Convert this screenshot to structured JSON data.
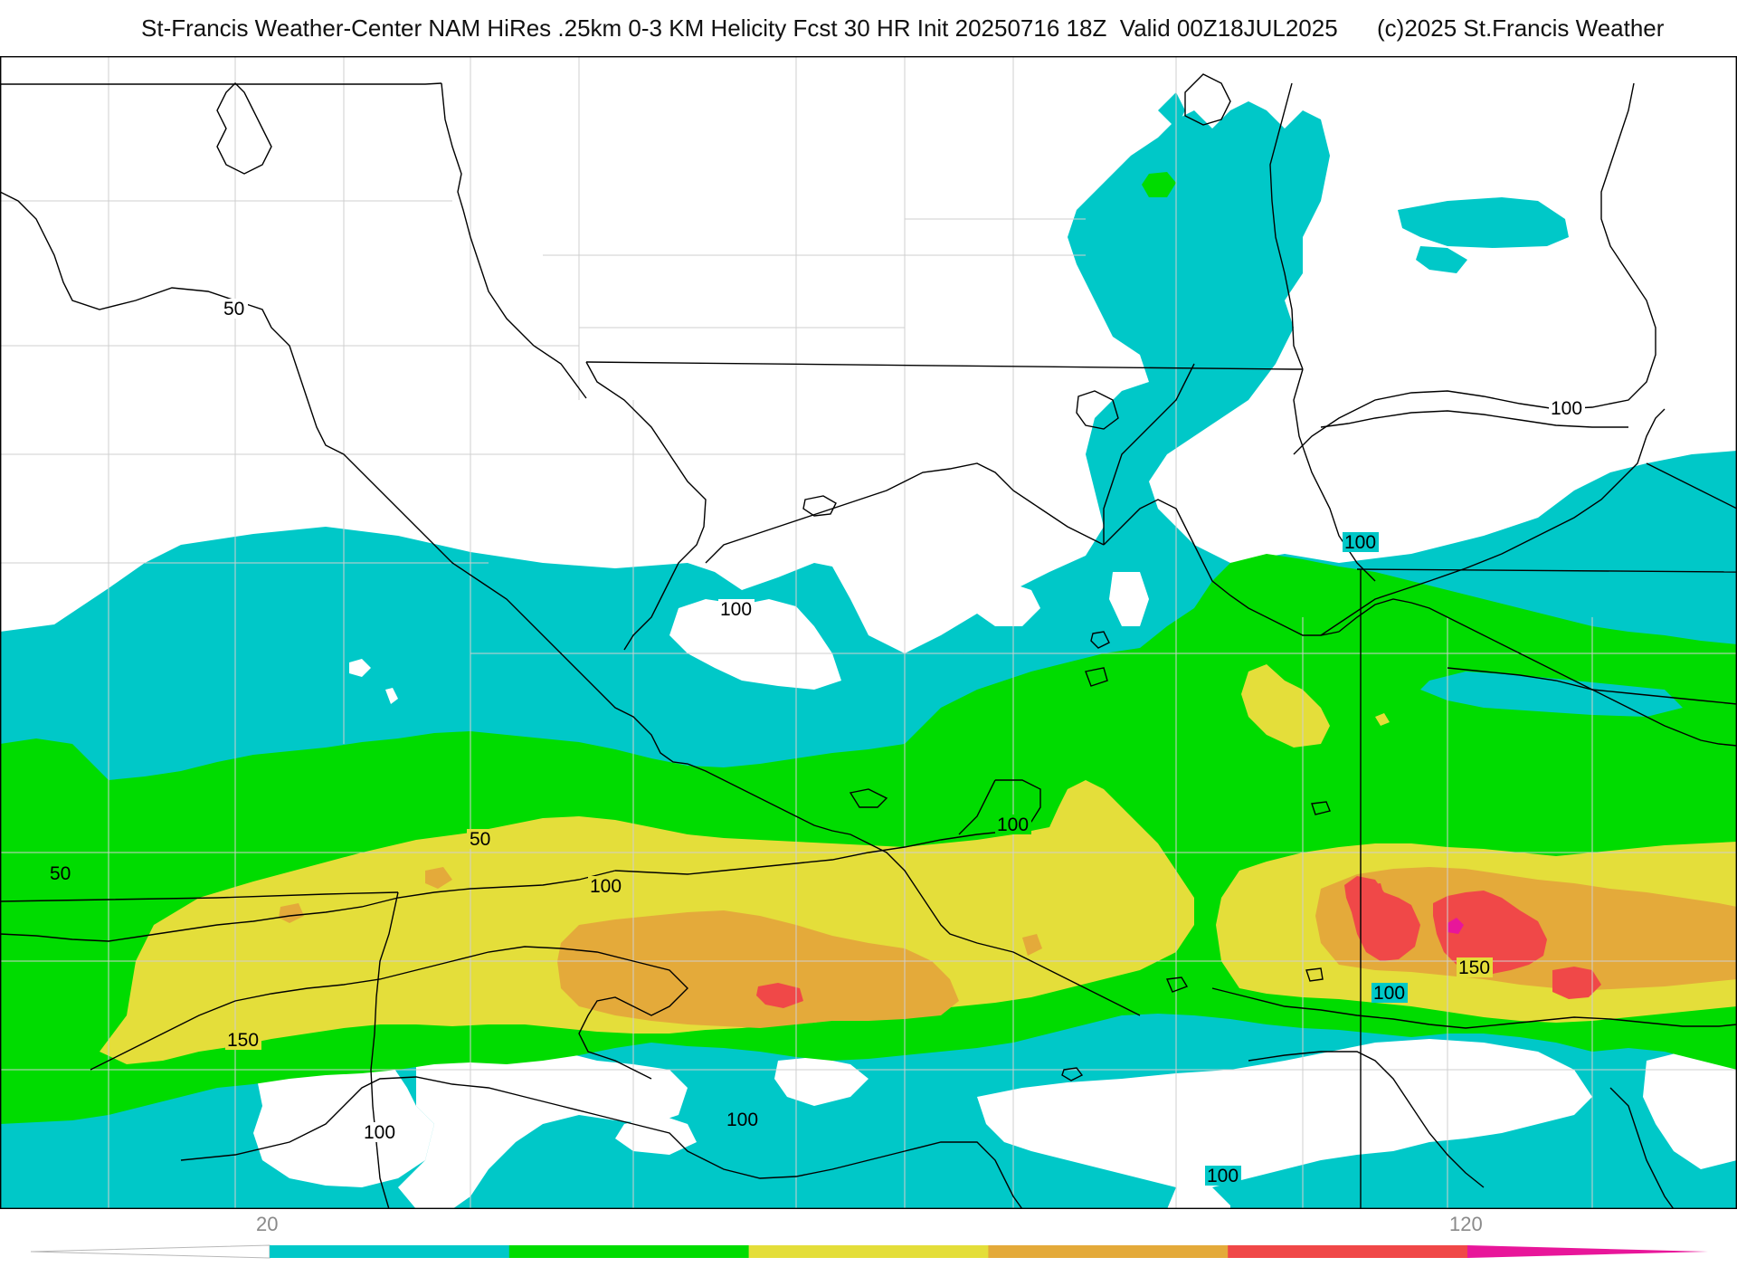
{
  "header": {
    "title": "St-Francis Weather-Center NAM HiRes .25km 0-3 KM Helicity Fcst 30 HR Init 20250716 18Z  Valid 00Z18JUL2025",
    "copyright": "(c)2025 St.Francis Weather"
  },
  "map": {
    "field": "0-3 KM Helicity",
    "contour_labels": [
      "50",
      "50",
      "50",
      "100",
      "100",
      "100",
      "100",
      "100",
      "100",
      "100",
      "100",
      "100",
      "150",
      "150"
    ]
  },
  "legend": {
    "tick_labels": [
      "20",
      "120"
    ],
    "colors": [
      "#00c8c8",
      "#00dc00",
      "#e4de3a",
      "#e4aa3a",
      "#f04848",
      "#e8169a"
    ]
  },
  "colors": {
    "cyan": "#00c8c8",
    "green": "#00dc00",
    "yellow": "#e4de3a",
    "orange": "#e4aa3a",
    "red": "#f04848",
    "magenta": "#e8169a"
  }
}
